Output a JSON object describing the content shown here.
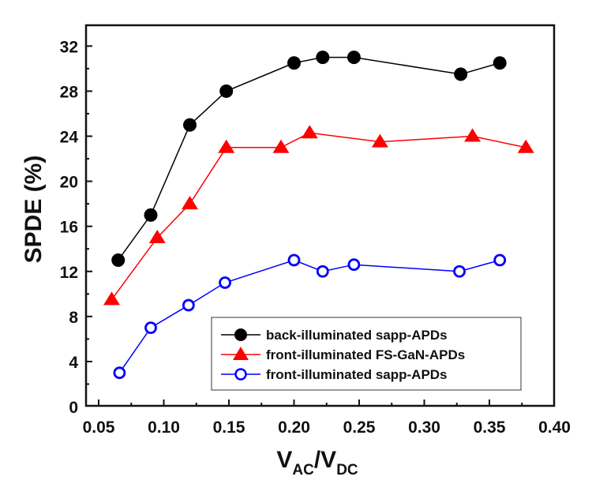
{
  "chart_data": {
    "type": "line",
    "title": "",
    "xlabel": "V_AC/V_DC",
    "xlabel_parts": {
      "main1": "V",
      "sub1": "AC",
      "sep": "/",
      "main2": "V",
      "sub2": "DC"
    },
    "ylabel": "SPDE (%)",
    "xlim": [
      0.045,
      0.4
    ],
    "ylim": [
      0,
      33.5
    ],
    "xticks": [
      0.05,
      0.1,
      0.15,
      0.2,
      0.25,
      0.3,
      0.35,
      0.4
    ],
    "xtick_labels": [
      "0.05",
      "0.10",
      "0.15",
      "0.20",
      "0.25",
      "0.30",
      "0.35",
      "0.40"
    ],
    "yticks": [
      0,
      4,
      8,
      12,
      16,
      20,
      24,
      28,
      32
    ],
    "ytick_labels": [
      "0",
      "4",
      "8",
      "12",
      "16",
      "20",
      "24",
      "28",
      "32"
    ],
    "grid": false,
    "legend_position": "lower right (inside)",
    "series": [
      {
        "name": "back-illuminated sapp-APDs",
        "color": "#000000",
        "marker": "filled-circle",
        "x": [
          0.065,
          0.09,
          0.12,
          0.148,
          0.2,
          0.222,
          0.246,
          0.328,
          0.358
        ],
        "y": [
          13,
          17,
          25,
          28,
          30.5,
          31,
          31,
          29.5,
          30.5
        ]
      },
      {
        "name": "front-illuminated FS-GaN-APDs",
        "color": "#ff0000",
        "marker": "filled-triangle",
        "x": [
          0.06,
          0.095,
          0.12,
          0.148,
          0.19,
          0.212,
          0.266,
          0.337,
          0.378
        ],
        "y": [
          9.5,
          15,
          18,
          23,
          23,
          24.3,
          23.5,
          24,
          23
        ]
      },
      {
        "name": "front-illuminated sapp-APDs",
        "color": "#0000ff",
        "marker": "open-circle",
        "x": [
          0.066,
          0.09,
          0.119,
          0.147,
          0.2,
          0.222,
          0.246,
          0.327,
          0.358
        ],
        "y": [
          3,
          7,
          9,
          11,
          13,
          12,
          12.6,
          12,
          13
        ]
      }
    ]
  }
}
